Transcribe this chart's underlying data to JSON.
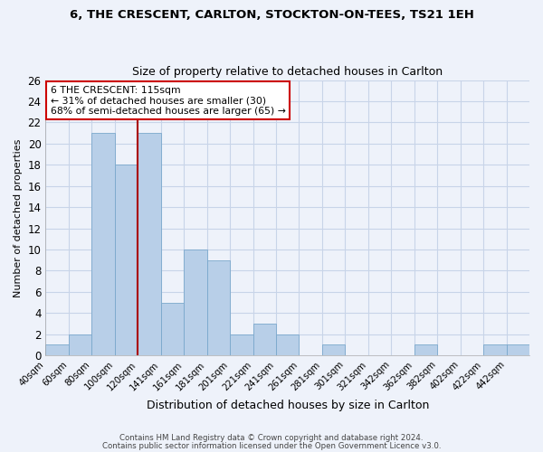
{
  "title": "6, THE CRESCENT, CARLTON, STOCKTON-ON-TEES, TS21 1EH",
  "subtitle": "Size of property relative to detached houses in Carlton",
  "xlabel": "Distribution of detached houses by size in Carlton",
  "ylabel": "Number of detached properties",
  "bin_labels": [
    "40sqm",
    "60sqm",
    "80sqm",
    "100sqm",
    "120sqm",
    "141sqm",
    "161sqm",
    "181sqm",
    "201sqm",
    "221sqm",
    "241sqm",
    "261sqm",
    "281sqm",
    "301sqm",
    "321sqm",
    "342sqm",
    "362sqm",
    "382sqm",
    "402sqm",
    "422sqm",
    "442sqm"
  ],
  "counts": [
    1,
    2,
    21,
    18,
    21,
    5,
    10,
    9,
    2,
    3,
    2,
    0,
    1,
    0,
    0,
    0,
    1,
    0,
    0,
    1,
    1
  ],
  "bar_color": "#b8cfe8",
  "bar_edge_color": "#7aa8cc",
  "grid_color": "#c8d4e8",
  "background_color": "#eef2fa",
  "vline_color": "#aa0000",
  "annotation_title": "6 THE CRESCENT: 115sqm",
  "annotation_line1": "← 31% of detached houses are smaller (30)",
  "annotation_line2": "68% of semi-detached houses are larger (65) →",
  "annotation_box_color": "#ffffff",
  "annotation_box_edge": "#cc0000",
  "ylim": [
    0,
    26
  ],
  "yticks": [
    0,
    2,
    4,
    6,
    8,
    10,
    12,
    14,
    16,
    18,
    20,
    22,
    24,
    26
  ],
  "footer1": "Contains HM Land Registry data © Crown copyright and database right 2024.",
  "footer2": "Contains public sector information licensed under the Open Government Licence v3.0."
}
